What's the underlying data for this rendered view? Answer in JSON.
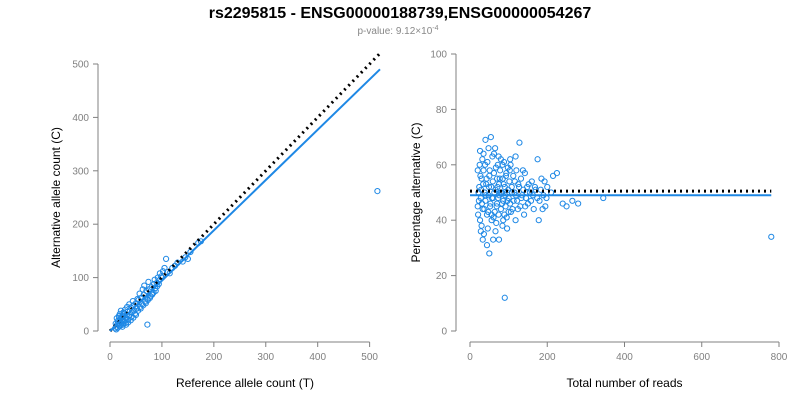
{
  "header": {
    "title": "rs2295815 - ENSG00000188739,ENSG00000054267",
    "subtitle_prefix": "p-value: 9.12×10",
    "subtitle_exp": "-4"
  },
  "colors": {
    "points": "#1e88e5",
    "fit_line": "#1e88e5",
    "expected_line": "#000000"
  },
  "chart_data": [
    {
      "type": "scatter",
      "xlabel": "Reference allele count (T)",
      "ylabel": "Alternative allele count (C)",
      "xlim": [
        0,
        520
      ],
      "ylim": [
        0,
        500
      ],
      "x_ticks": [
        0,
        100,
        200,
        300,
        400,
        500
      ],
      "y_ticks": [
        0,
        100,
        200,
        300,
        400,
        500
      ],
      "grid": false,
      "points": [
        [
          10,
          5
        ],
        [
          12,
          8
        ],
        [
          14,
          12
        ],
        [
          11,
          14
        ],
        [
          15,
          18
        ],
        [
          18,
          10
        ],
        [
          20,
          22
        ],
        [
          16,
          20
        ],
        [
          22,
          15
        ],
        [
          25,
          28
        ],
        [
          24,
          20
        ],
        [
          28,
          18
        ],
        [
          30,
          25
        ],
        [
          32,
          30
        ],
        [
          35,
          22
        ],
        [
          27,
          33
        ],
        [
          13,
          24
        ],
        [
          17,
          28
        ],
        [
          19,
          32
        ],
        [
          21,
          38
        ],
        [
          23,
          26
        ],
        [
          29,
          40
        ],
        [
          34,
          36
        ],
        [
          38,
          30
        ],
        [
          40,
          44
        ],
        [
          42,
          35
        ],
        [
          45,
          48
        ],
        [
          47,
          38
        ],
        [
          50,
          52
        ],
        [
          52,
          42
        ],
        [
          55,
          58
        ],
        [
          58,
          45
        ],
        [
          60,
          62
        ],
        [
          62,
          50
        ],
        [
          65,
          68
        ],
        [
          68,
          55
        ],
        [
          70,
          75
        ],
        [
          72,
          60
        ],
        [
          75,
          78
        ],
        [
          78,
          65
        ],
        [
          80,
          82
        ],
        [
          82,
          70
        ],
        [
          85,
          88
        ],
        [
          88,
          75
        ],
        [
          90,
          90
        ],
        [
          95,
          95
        ],
        [
          98,
          102
        ],
        [
          100,
          100
        ],
        [
          105,
          118
        ],
        [
          108,
          135
        ],
        [
          110,
          110
        ],
        [
          115,
          108
        ],
        [
          120,
          118
        ],
        [
          125,
          122
        ],
        [
          130,
          128
        ],
        [
          140,
          130
        ],
        [
          145,
          138
        ],
        [
          150,
          135
        ],
        [
          155,
          148
        ],
        [
          170,
          165
        ],
        [
          175,
          168
        ],
        [
          72,
          12
        ],
        [
          12,
          3
        ],
        [
          15,
          6
        ],
        [
          20,
          10
        ],
        [
          25,
          12
        ],
        [
          30,
          15
        ],
        [
          35,
          16
        ],
        [
          40,
          20
        ],
        [
          45,
          25
        ],
        [
          50,
          30
        ],
        [
          18,
          25
        ],
        [
          26,
          35
        ],
        [
          33,
          45
        ],
        [
          37,
          50
        ],
        [
          44,
          56
        ],
        [
          53,
          60
        ],
        [
          57,
          70
        ],
        [
          63,
          78
        ],
        [
          66,
          85
        ],
        [
          74,
          92
        ],
        [
          86,
          96
        ],
        [
          92,
          100
        ],
        [
          96,
          108
        ],
        [
          102,
          112
        ],
        [
          24,
          8
        ],
        [
          31,
          12
        ],
        [
          36,
          28
        ],
        [
          41,
          26
        ],
        [
          48,
          32
        ],
        [
          54,
          38
        ],
        [
          59,
          42
        ],
        [
          64,
          48
        ],
        [
          69,
          52
        ],
        [
          73,
          58
        ],
        [
          77,
          62
        ],
        [
          81,
          68
        ],
        [
          84,
          72
        ],
        [
          87,
          80
        ],
        [
          91,
          84
        ],
        [
          94,
          88
        ],
        [
          515,
          262
        ]
      ],
      "fit_line": [
        [
          0,
          0
        ],
        [
          520,
          490
        ]
      ],
      "expected_line": [
        [
          0,
          0
        ],
        [
          520,
          520
        ]
      ]
    },
    {
      "type": "scatter",
      "xlabel": "Total number of reads",
      "ylabel": "Percentage alternative (C)",
      "xlim": [
        0,
        800
      ],
      "ylim": [
        0,
        100
      ],
      "x_ticks": [
        0,
        200,
        400,
        600,
        800
      ],
      "y_ticks": [
        0,
        20,
        40,
        60,
        80,
        100
      ],
      "grid": false,
      "points": [
        [
          20,
          45
        ],
        [
          22,
          50
        ],
        [
          24,
          52
        ],
        [
          25,
          60
        ],
        [
          26,
          40
        ],
        [
          28,
          48
        ],
        [
          30,
          55
        ],
        [
          30,
          38
        ],
        [
          32,
          62
        ],
        [
          33,
          44
        ],
        [
          35,
          58
        ],
        [
          36,
          35
        ],
        [
          38,
          50
        ],
        [
          40,
          47
        ],
        [
          40,
          69
        ],
        [
          42,
          53
        ],
        [
          44,
          42
        ],
        [
          45,
          61
        ],
        [
          46,
          37
        ],
        [
          48,
          49
        ],
        [
          50,
          56
        ],
        [
          50,
          28
        ],
        [
          52,
          45
        ],
        [
          54,
          70
        ],
        [
          55,
          52
        ],
        [
          56,
          40
        ],
        [
          58,
          63
        ],
        [
          60,
          48
        ],
        [
          60,
          33
        ],
        [
          62,
          57
        ],
        [
          64,
          43
        ],
        [
          65,
          66
        ],
        [
          66,
          51
        ],
        [
          68,
          39
        ],
        [
          70,
          55
        ],
        [
          70,
          46
        ],
        [
          72,
          60
        ],
        [
          74,
          42
        ],
        [
          75,
          53
        ],
        [
          76,
          49
        ],
        [
          78,
          58
        ],
        [
          80,
          44
        ],
        [
          80,
          62
        ],
        [
          82,
          50
        ],
        [
          84,
          38
        ],
        [
          85,
          55
        ],
        [
          86,
          47
        ],
        [
          88,
          61
        ],
        [
          90,
          12
        ],
        [
          90,
          52
        ],
        [
          92,
          45
        ],
        [
          94,
          57
        ],
        [
          95,
          41
        ],
        [
          96,
          50
        ],
        [
          98,
          59
        ],
        [
          100,
          48
        ],
        [
          100,
          43
        ],
        [
          102,
          54
        ],
        [
          104,
          46
        ],
        [
          105,
          60
        ],
        [
          108,
          52
        ],
        [
          110,
          44
        ],
        [
          112,
          56
        ],
        [
          115,
          50
        ],
        [
          118,
          40
        ],
        [
          120,
          58
        ],
        [
          122,
          47
        ],
        [
          125,
          53
        ],
        [
          128,
          68
        ],
        [
          130,
          45
        ],
        [
          132,
          55
        ],
        [
          135,
          49
        ],
        [
          138,
          51
        ],
        [
          140,
          42
        ],
        [
          142,
          57
        ],
        [
          145,
          48
        ],
        [
          148,
          52
        ],
        [
          150,
          46
        ],
        [
          155,
          50
        ],
        [
          160,
          54
        ],
        [
          165,
          44
        ],
        [
          170,
          51
        ],
        [
          175,
          62
        ],
        [
          178,
          40
        ],
        [
          180,
          47
        ],
        [
          185,
          55
        ],
        [
          190,
          49
        ],
        [
          195,
          45
        ],
        [
          200,
          52
        ],
        [
          210,
          50
        ],
        [
          215,
          56
        ],
        [
          225,
          57
        ],
        [
          240,
          46
        ],
        [
          250,
          45
        ],
        [
          265,
          47
        ],
        [
          280,
          46
        ],
        [
          345,
          48
        ],
        [
          780,
          34
        ],
        [
          20,
          58
        ],
        [
          21,
          42
        ],
        [
          23,
          47
        ],
        [
          27,
          56
        ],
        [
          29,
          51
        ],
        [
          31,
          46
        ],
        [
          34,
          53
        ],
        [
          37,
          44
        ],
        [
          39,
          60
        ],
        [
          41,
          49
        ],
        [
          43,
          55
        ],
        [
          47,
          43
        ],
        [
          49,
          52
        ],
        [
          51,
          58
        ],
        [
          53,
          46
        ],
        [
          57,
          48
        ],
        [
          59,
          54
        ],
        [
          61,
          41
        ],
        [
          63,
          50
        ],
        [
          67,
          59
        ],
        [
          69,
          45
        ],
        [
          71,
          52
        ],
        [
          73,
          48
        ],
        [
          77,
          55
        ],
        [
          79,
          50
        ],
        [
          83,
          46
        ],
        [
          87,
          53
        ],
        [
          89,
          42
        ],
        [
          91,
          49
        ],
        [
          93,
          56
        ],
        [
          97,
          47
        ],
        [
          99,
          51
        ],
        [
          103,
          58
        ],
        [
          106,
          43
        ],
        [
          109,
          50
        ],
        [
          113,
          47
        ],
        [
          116,
          54
        ],
        [
          119,
          49
        ],
        [
          124,
          44
        ],
        [
          127,
          52
        ],
        [
          133,
          48
        ],
        [
          137,
          58
        ],
        [
          143,
          45
        ],
        [
          147,
          50
        ],
        [
          152,
          53
        ],
        [
          158,
          47
        ],
        [
          163,
          49
        ],
        [
          168,
          52
        ],
        [
          174,
          48
        ],
        [
          183,
          51
        ],
        [
          188,
          44
        ],
        [
          193,
          54
        ],
        [
          198,
          48
        ],
        [
          28,
          36
        ],
        [
          33,
          33
        ],
        [
          44,
          31
        ],
        [
          56,
          42
        ],
        [
          66,
          36
        ],
        [
          75,
          33
        ],
        [
          86,
          40
        ],
        [
          96,
          37
        ],
        [
          26,
          65
        ],
        [
          35,
          64
        ],
        [
          48,
          66
        ],
        [
          62,
          64
        ],
        [
          74,
          63
        ],
        [
          84,
          60
        ],
        [
          104,
          62
        ],
        [
          118,
          63
        ]
      ],
      "fit_line": [
        [
          0,
          49
        ],
        [
          780,
          49
        ]
      ],
      "expected_line": [
        [
          0,
          50.5
        ],
        [
          780,
          50.5
        ]
      ]
    }
  ]
}
